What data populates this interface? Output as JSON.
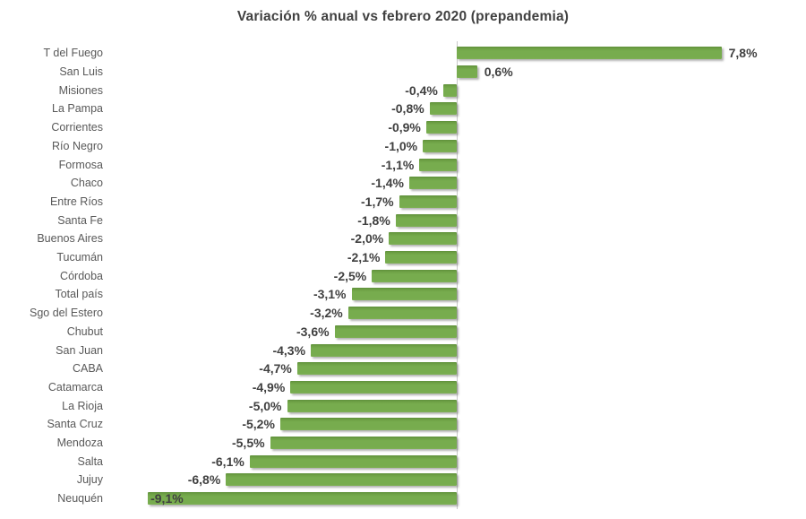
{
  "chart_data": {
    "type": "bar",
    "orientation": "horizontal",
    "title": "Variación % anual vs febrero 2020 (prepandemia)",
    "categories": [
      "T del Fuego",
      "San Luis",
      "Misiones",
      "La Pampa",
      "Corrientes",
      "Río Negro",
      "Formosa",
      "Chaco",
      "Entre Ríos",
      "Santa Fe",
      "Buenos Aires",
      "Tucumán",
      "Córdoba",
      "Total país",
      "Sgo del Estero",
      "Chubut",
      "San Juan",
      "CABA",
      "Catamarca",
      "La Rioja",
      "Santa Cruz",
      "Mendoza",
      "Salta",
      "Jujuy",
      "Neuquén"
    ],
    "values": [
      7.8,
      0.6,
      -0.4,
      -0.8,
      -0.9,
      -1.0,
      -1.1,
      -1.4,
      -1.7,
      -1.8,
      -2.0,
      -2.1,
      -2.5,
      -3.1,
      -3.2,
      -3.6,
      -4.3,
      -4.7,
      -4.9,
      -5.0,
      -5.2,
      -5.5,
      -6.1,
      -6.8,
      -9.1
    ],
    "value_labels": [
      "7,8%",
      "0,6%",
      "-0,4%",
      "-0,8%",
      "-0,9%",
      "-1,0%",
      "-1,1%",
      "-1,4%",
      "-1,7%",
      "-1,8%",
      "-2,0%",
      "-2,1%",
      "-2,5%",
      "-3,1%",
      "-3,2%",
      "-3,6%",
      "-4,3%",
      "-4,7%",
      "-4,9%",
      "-5,0%",
      "-5,2%",
      "-5,5%",
      "-6,1%",
      "-6,8%",
      "-9,1%"
    ],
    "xlim": [
      -9.5,
      8.5
    ],
    "grid": false,
    "legend": false,
    "value_label_position": "outside-end",
    "colors": {
      "bar": "#77ac4e",
      "bar_edge_top": "#5e8f3a",
      "value_label": "#404040",
      "category_label": "#595959",
      "title": "#404040",
      "axis_line": "#c9c9c9",
      "background": "#ffffff"
    }
  }
}
